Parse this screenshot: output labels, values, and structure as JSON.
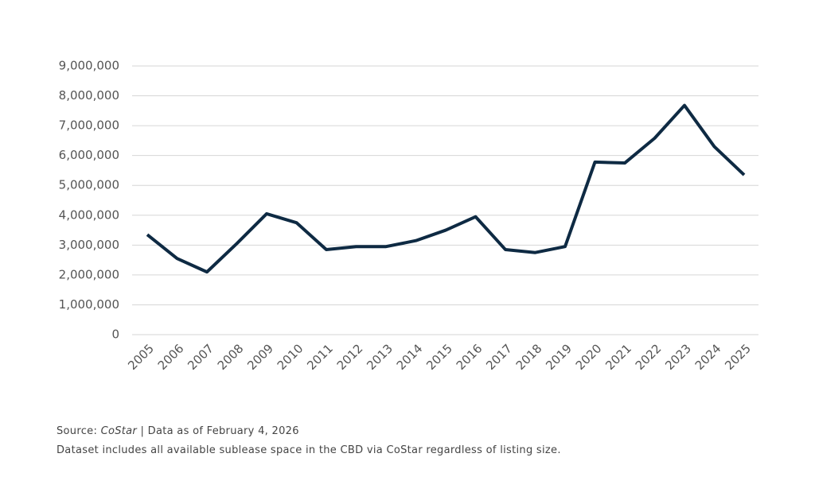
{
  "chart_data": {
    "type": "line",
    "categories": [
      "2005",
      "2006",
      "2007",
      "2008",
      "2009",
      "2010",
      "2011",
      "2012",
      "2013",
      "2014",
      "2015",
      "2016",
      "2017",
      "2018",
      "2019",
      "2020",
      "2021",
      "2022",
      "2023",
      "2024",
      "2025"
    ],
    "values": [
      3350000,
      2550000,
      2100000,
      3050000,
      4050000,
      3750000,
      2850000,
      2950000,
      2950000,
      3150000,
      3500000,
      3950000,
      2850000,
      2750000,
      2950000,
      5780000,
      5750000,
      6580000,
      7680000,
      6300000,
      5350000
    ],
    "color": "#0e2a43",
    "ylim": [
      0,
      9000000
    ],
    "yticks": [
      0,
      {
        "value": 1000000,
        "label": "1,000,000"
      },
      {
        "value": 2000000,
        "label": "2,000,000"
      },
      {
        "value": 3000000,
        "label": "3,000,000"
      },
      {
        "value": 4000000,
        "label": "4,000,000"
      },
      {
        "value": 5000000,
        "label": "5,000,000"
      },
      {
        "value": 6000000,
        "label": "6,000,000"
      },
      {
        "value": 7000000,
        "label": "7,000,000"
      },
      {
        "value": 8000000,
        "label": "8,000,000"
      },
      {
        "value": 9000000,
        "label": "9,000,000"
      }
    ],
    "grid": true
  },
  "footer": {
    "source_prefix": "Source:",
    "source_name": "CoStar",
    "source_suffix": "| Data as of February 4, 2026",
    "note": "Dataset includes all available sublease space in the CBD via CoStar regardless of listing size."
  }
}
